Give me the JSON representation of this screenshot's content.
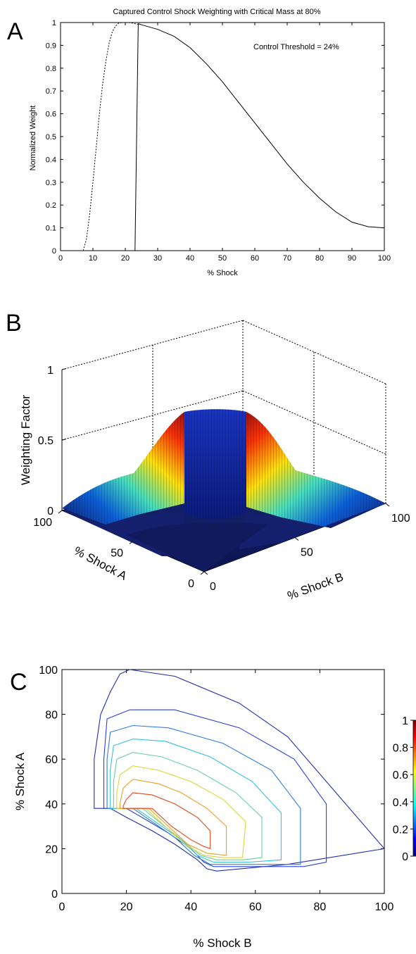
{
  "panel_letters": {
    "a": "A",
    "b": "B",
    "c": "C"
  },
  "chart_data": [
    {
      "type": "line",
      "panel": "A",
      "title": "Captured Control Shock Weighting with Critical Mass at 80%",
      "xlabel": "% Shock",
      "ylabel": "Normalized Weight",
      "xlim": [
        0,
        100
      ],
      "ylim": [
        0,
        1
      ],
      "xticks": [
        0,
        10,
        20,
        30,
        40,
        50,
        60,
        70,
        80,
        90,
        100
      ],
      "yticks": [
        0,
        0.1,
        0.2,
        0.3,
        0.4,
        0.5,
        0.6,
        0.7,
        0.8,
        0.9,
        1
      ],
      "annotation": "Control Threshold = 24%",
      "grid": false,
      "series": [
        {
          "style": "dashed",
          "x": [
            7,
            8,
            9,
            10,
            11,
            12,
            13,
            14,
            15,
            16,
            17,
            18,
            19,
            20,
            21,
            22,
            23,
            24
          ],
          "y": [
            0,
            0.05,
            0.16,
            0.3,
            0.45,
            0.6,
            0.73,
            0.83,
            0.91,
            0.96,
            0.985,
            0.998,
            1,
            1,
            1,
            0.998,
            0.995,
            0.992
          ]
        },
        {
          "style": "solid",
          "x": [
            23,
            23.5,
            24,
            25,
            30,
            35,
            40,
            45,
            50,
            55,
            60,
            65,
            70,
            75,
            80,
            85,
            90,
            95,
            100
          ],
          "y": [
            0,
            0.5,
            0.995,
            0.99,
            0.97,
            0.94,
            0.89,
            0.82,
            0.74,
            0.65,
            0.56,
            0.47,
            0.38,
            0.3,
            0.23,
            0.17,
            0.125,
            0.105,
            0.1
          ]
        }
      ]
    },
    {
      "type": "surface",
      "panel": "B",
      "zlabel": "Weighting Factor",
      "xlabel": "% Shock B",
      "ylabel": "% Shock A",
      "zticks": [
        0,
        0.5,
        1
      ],
      "xticks": [
        0,
        50,
        100
      ],
      "yticks": [
        0,
        50,
        100
      ],
      "zlim": [
        0,
        1
      ],
      "colormap": "jet",
      "peak_value": 0.7
    },
    {
      "type": "contour",
      "panel": "C",
      "xlabel": "% Shock B",
      "ylabel": "% Shock A",
      "xlim": [
        0,
        100
      ],
      "ylim": [
        0,
        100
      ],
      "xticks": [
        0,
        20,
        40,
        60,
        80,
        100
      ],
      "yticks": [
        0,
        20,
        40,
        60,
        80,
        100
      ],
      "colorbar": {
        "min": 0,
        "max": 1,
        "ticks": [
          0,
          0.2,
          0.4,
          0.6,
          0.8,
          1
        ],
        "labels": [
          "0",
          "0.2",
          "0.4",
          "0.6",
          "0.8",
          "1"
        ],
        "colormap": "jet"
      },
      "contours": [
        {
          "level": 0.1,
          "color": "#1f2fb0",
          "points": [
            [
              21,
              100
            ],
            [
              18,
              98
            ],
            [
              15,
              90
            ],
            [
              12,
              80
            ],
            [
              10,
              60
            ],
            [
              10,
              38
            ],
            [
              15,
              38
            ],
            [
              20,
              34
            ],
            [
              28,
              28
            ],
            [
              35,
              22
            ],
            [
              42,
              15
            ],
            [
              45,
              11
            ],
            [
              48,
              10
            ],
            [
              70,
              13
            ],
            [
              100,
              20
            ],
            [
              85,
              45
            ],
            [
              70,
              70
            ],
            [
              55,
              85
            ],
            [
              35,
              97
            ],
            [
              21,
              100
            ]
          ]
        },
        {
          "level": 0.2,
          "color": "#2a40d8",
          "points": [
            [
              21,
              82
            ],
            [
              14,
              78
            ],
            [
              13,
              60
            ],
            [
              13,
              38
            ],
            [
              20,
              38
            ],
            [
              26,
              33
            ],
            [
              33,
              27
            ],
            [
              40,
              20
            ],
            [
              44,
              14
            ],
            [
              47,
              12
            ],
            [
              58,
              12
            ],
            [
              75,
              12
            ],
            [
              82,
              14
            ],
            [
              82,
              40
            ],
            [
              72,
              60
            ],
            [
              55,
              74
            ],
            [
              35,
              82
            ],
            [
              21,
              82
            ]
          ]
        },
        {
          "level": 0.3,
          "color": "#2f7fe0",
          "points": [
            [
              22,
              75
            ],
            [
              15,
              72
            ],
            [
              14,
              60
            ],
            [
              14,
              38
            ],
            [
              22,
              38
            ],
            [
              28,
              32
            ],
            [
              35,
              25
            ],
            [
              41,
              17
            ],
            [
              46,
              13
            ],
            [
              58,
              13
            ],
            [
              74,
              13
            ],
            [
              74,
              38
            ],
            [
              65,
              55
            ],
            [
              50,
              67
            ],
            [
              33,
              74
            ],
            [
              22,
              75
            ]
          ]
        },
        {
          "level": 0.4,
          "color": "#33c0e0",
          "points": [
            [
              22,
              69
            ],
            [
              16,
              66
            ],
            [
              15,
              55
            ],
            [
              15,
              38
            ],
            [
              23,
              38
            ],
            [
              30,
              31
            ],
            [
              37,
              24
            ],
            [
              42,
              17
            ],
            [
              47,
              14
            ],
            [
              58,
              14
            ],
            [
              68,
              15
            ],
            [
              68,
              36
            ],
            [
              59,
              50
            ],
            [
              46,
              61
            ],
            [
              32,
              68
            ],
            [
              22,
              69
            ]
          ]
        },
        {
          "level": 0.5,
          "color": "#6ad0a0",
          "points": [
            [
              22,
              63
            ],
            [
              17,
              60
            ],
            [
              16,
              50
            ],
            [
              16,
              38
            ],
            [
              25,
              38
            ],
            [
              31,
              31
            ],
            [
              38,
              23
            ],
            [
              43,
              17
            ],
            [
              48,
              15
            ],
            [
              56,
              15
            ],
            [
              62,
              16
            ],
            [
              62,
              34
            ],
            [
              54,
              45
            ],
            [
              42,
              55
            ],
            [
              31,
              61
            ],
            [
              22,
              63
            ]
          ]
        },
        {
          "level": 0.6,
          "color": "#d8d838",
          "points": [
            [
              22,
              57
            ],
            [
              18,
              53
            ],
            [
              17,
              45
            ],
            [
              17,
              38
            ],
            [
              26,
              38
            ],
            [
              32,
              30
            ],
            [
              38,
              22
            ],
            [
              44,
              17
            ],
            [
              50,
              16
            ],
            [
              56,
              16
            ],
            [
              57,
              32
            ],
            [
              50,
              42
            ],
            [
              40,
              50
            ],
            [
              30,
              55
            ],
            [
              22,
              57
            ]
          ]
        },
        {
          "level": 0.7,
          "color": "#f0a020",
          "points": [
            [
              22,
              51
            ],
            [
              19,
              47
            ],
            [
              18,
              40
            ],
            [
              18,
              38
            ],
            [
              27,
              38
            ],
            [
              33,
              30
            ],
            [
              39,
              22
            ],
            [
              45,
              18
            ],
            [
              51,
              17
            ],
            [
              51,
              30
            ],
            [
              45,
              38
            ],
            [
              37,
              45
            ],
            [
              30,
              49
            ],
            [
              22,
              51
            ]
          ]
        },
        {
          "level": 0.8,
          "color": "#e04818",
          "points": [
            [
              22,
              45
            ],
            [
              20,
              42
            ],
            [
              19,
              39
            ],
            [
              19,
              38
            ],
            [
              28,
              38
            ],
            [
              34,
              30
            ],
            [
              40,
              24
            ],
            [
              44,
              21
            ],
            [
              46,
              20
            ],
            [
              46,
              28
            ],
            [
              42,
              34
            ],
            [
              35,
              40
            ],
            [
              28,
              44
            ],
            [
              22,
              45
            ]
          ]
        }
      ]
    }
  ]
}
